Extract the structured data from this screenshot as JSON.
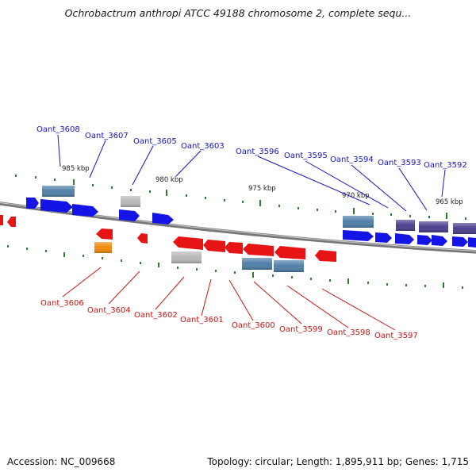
{
  "title": "Ochrobactrum anthropi ATCC 49188 chromosome 2, complete sequ...",
  "accession": "Accession: NC_009668",
  "summary": "Topology: circular; Length: 1,895,911 bp; Genes: 1,715",
  "colors": {
    "forward_gene": "#1414e6",
    "reverse_gene": "#e61414",
    "steel_feature": "#4f7fa8",
    "purple_feature": "#4a3f8e",
    "grey_feature": "#b8b8b8",
    "orange_feature": "#f08a0a",
    "forward_label": "#1414c8",
    "reverse_label": "#c81414",
    "tick": "#2e7d2e",
    "backbone": "#8c8c8c"
  },
  "scale_labels": [
    "985 kbp",
    "980 kbp",
    "975 kbp",
    "970 kbp",
    "965 kbp"
  ],
  "forward_labels": [
    "Oant_3608",
    "Oant_3607",
    "Oant_3605",
    "Oant_3603",
    "Oant_3596",
    "Oant_3595",
    "Oant_3594",
    "Oant_3593",
    "Oant_3592"
  ],
  "reverse_labels": [
    "Oant_3606",
    "Oant_3604",
    "Oant_3602",
    "Oant_3601",
    "Oant_3600",
    "Oant_3599",
    "Oant_3598",
    "Oant_3597"
  ]
}
